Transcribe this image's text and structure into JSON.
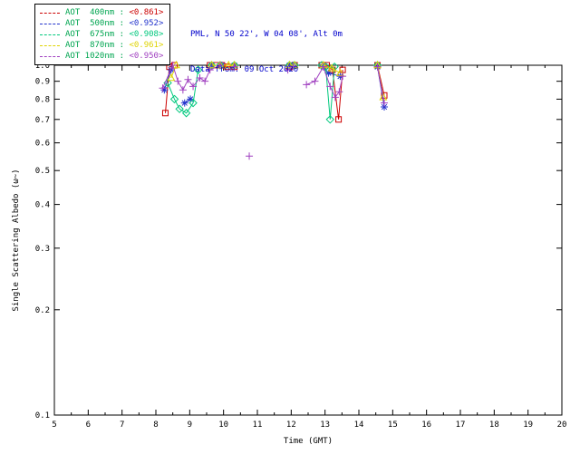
{
  "header": {
    "location": "PML, N 50 22', W 04 08', Alt 0m",
    "date_line": "Data from: 09 Oct 2020"
  },
  "legend": {
    "label_color": "#00a550",
    "entries": [
      {
        "label": "AOT  400nm : ",
        "value": "<0.861>",
        "color": "#cc0000",
        "value_color": "#cc0000"
      },
      {
        "label": "AOT  500nm : ",
        "value": "<0.952>",
        "color": "#2233cc",
        "value_color": "#2233cc"
      },
      {
        "label": "AOT  675nm : ",
        "value": "<0.908>",
        "color": "#00c87d",
        "value_color": "#00c87d"
      },
      {
        "label": "AOT  870nm : ",
        "value": "<0.961>",
        "color": "#ded300",
        "value_color": "#ded300"
      },
      {
        "label": "AOT 1020nm : ",
        "value": "<0.950>",
        "color": "#a040c0",
        "value_color": "#a040c0"
      }
    ]
  },
  "chart_data": {
    "type": "line",
    "title": "",
    "xlabel": "Time (GMT)",
    "ylabel": "Single Scattering Albedo (ω~)",
    "xlim": [
      5,
      20
    ],
    "ylim": [
      0.1,
      1.0
    ],
    "yscale": "log",
    "grid": false,
    "legend_position": "top-left",
    "xticks": [
      5,
      6,
      7,
      8,
      9,
      10,
      11,
      12,
      13,
      14,
      15,
      16,
      17,
      18,
      19,
      20
    ],
    "yticks": [
      1.0,
      0.9,
      0.8,
      0.7,
      0.6,
      0.5,
      0.4,
      0.3,
      0.2,
      0.1
    ],
    "ytick_labels": [
      "1.0",
      "0.9",
      "0.8",
      "0.7",
      "0.6",
      "0.5",
      "0.4",
      "0.3",
      "0.2",
      "0.1"
    ],
    "series": [
      {
        "name": "AOT 400nm",
        "color": "#cc0000",
        "marker": "square",
        "points": [
          [
            8.28,
            0.73
          ],
          [
            8.4,
            0.99
          ],
          [
            8.55,
            1.0
          ],
          [
            9.6,
            1.0
          ],
          [
            9.78,
            1.0
          ],
          [
            9.95,
            1.0
          ],
          [
            10.12,
            0.99
          ],
          [
            10.32,
            0.99
          ],
          [
            11.95,
            0.99
          ],
          [
            12.1,
            1.0
          ],
          [
            12.9,
            1.0
          ],
          [
            13.05,
            1.0
          ],
          [
            13.22,
            0.97
          ],
          [
            13.4,
            0.7
          ],
          [
            13.52,
            0.97
          ],
          [
            14.55,
            1.0
          ],
          [
            14.75,
            0.82
          ]
        ]
      },
      {
        "name": "AOT 500nm",
        "color": "#2233cc",
        "marker": "asterisk",
        "points": [
          [
            8.25,
            0.85
          ],
          [
            8.45,
            0.97
          ],
          [
            8.85,
            0.78
          ],
          [
            9.02,
            0.8
          ],
          [
            9.65,
            1.0
          ],
          [
            9.95,
            1.0
          ],
          [
            10.32,
            1.0
          ],
          [
            11.95,
            1.0
          ],
          [
            12.05,
            1.0
          ],
          [
            12.95,
            0.99
          ],
          [
            13.1,
            0.95
          ],
          [
            13.45,
            0.93
          ],
          [
            14.55,
            0.99
          ],
          [
            14.75,
            0.76
          ]
        ]
      },
      {
        "name": "AOT 675nm",
        "color": "#00c87d",
        "marker": "diamond",
        "points": [
          [
            8.35,
            0.89
          ],
          [
            8.55,
            0.8
          ],
          [
            8.7,
            0.75
          ],
          [
            8.9,
            0.73
          ],
          [
            9.1,
            0.78
          ],
          [
            9.25,
            0.97
          ],
          [
            9.65,
            1.0
          ],
          [
            9.9,
            1.0
          ],
          [
            10.32,
            1.0
          ],
          [
            11.95,
            1.0
          ],
          [
            12.1,
            1.0
          ],
          [
            12.9,
            1.0
          ],
          [
            13.02,
            0.99
          ],
          [
            13.15,
            0.7
          ],
          [
            13.28,
            0.99
          ],
          [
            14.55,
            1.0
          ]
        ]
      },
      {
        "name": "AOT 870nm",
        "color": "#ded300",
        "marker": "triangle",
        "points": [
          [
            8.45,
            0.92
          ],
          [
            8.6,
            1.0
          ],
          [
            9.65,
            1.0
          ],
          [
            9.9,
            1.0
          ],
          [
            10.15,
            1.0
          ],
          [
            10.32,
            1.0
          ],
          [
            11.95,
            1.0
          ],
          [
            12.1,
            1.0
          ],
          [
            12.95,
            1.0
          ],
          [
            13.2,
            0.98
          ],
          [
            13.45,
            0.95
          ],
          [
            14.55,
            1.0
          ],
          [
            14.72,
            0.81
          ]
        ]
      },
      {
        "name": "AOT 1020nm",
        "color": "#a040c0",
        "marker": "plus",
        "points": [
          [
            8.2,
            0.86
          ],
          [
            8.5,
            1.0
          ],
          [
            8.65,
            0.9
          ],
          [
            8.8,
            0.85
          ],
          [
            8.95,
            0.91
          ],
          [
            9.1,
            0.87
          ],
          [
            9.3,
            0.92
          ],
          [
            9.45,
            0.9
          ],
          [
            9.6,
            0.97
          ],
          [
            9.9,
            1.0
          ],
          [
            10.32,
            0.99
          ],
          [
            10.76,
            0.55
          ],
          [
            11.9,
            0.97
          ],
          [
            12.05,
            0.99
          ],
          [
            12.45,
            0.88
          ],
          [
            12.7,
            0.9
          ],
          [
            12.95,
            0.99
          ],
          [
            13.15,
            0.87
          ],
          [
            13.3,
            0.81
          ],
          [
            13.42,
            0.84
          ],
          [
            13.52,
            0.93
          ],
          [
            14.55,
            0.99
          ],
          [
            14.75,
            0.78
          ]
        ]
      }
    ]
  }
}
